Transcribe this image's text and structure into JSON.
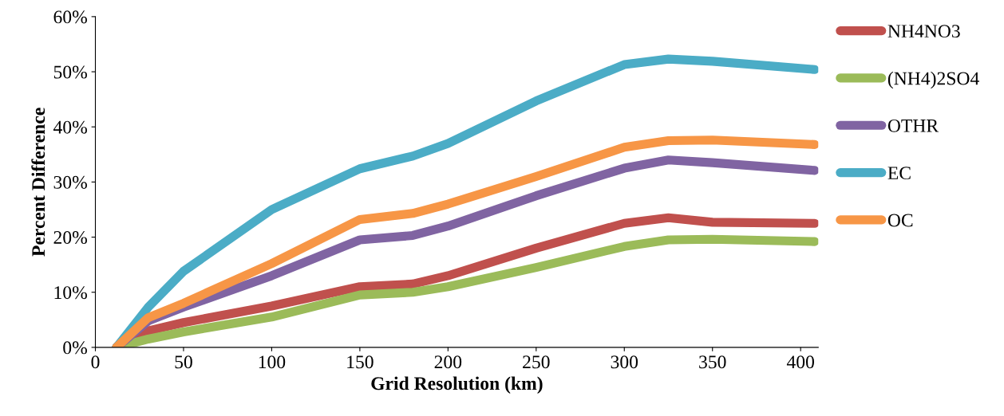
{
  "chart_data": {
    "type": "line",
    "xlabel": "Grid Resolution (km)",
    "ylabel": "Percent Difference",
    "x": [
      12,
      30,
      50,
      100,
      150,
      180,
      200,
      250,
      300,
      325,
      350,
      408
    ],
    "series": [
      {
        "name": "NH4NO3",
        "color": "#c0504d",
        "values": [
          0,
          3,
          4.5,
          7.5,
          11,
          11.5,
          13,
          18,
          22.5,
          23.5,
          22.7,
          22.5
        ]
      },
      {
        "name": "(NH4)2SO4",
        "color": "#9bbb59",
        "values": [
          0,
          1.5,
          2.8,
          5.5,
          9.5,
          10,
          11,
          14.5,
          18.3,
          19.5,
          19.6,
          19.2
        ]
      },
      {
        "name": "OTHR",
        "color": "#8064a2",
        "values": [
          0,
          4.8,
          7.3,
          13,
          19.5,
          20.3,
          22,
          27.5,
          32.5,
          34,
          33.5,
          32.1
        ]
      },
      {
        "name": "EC",
        "color": "#4bacc6",
        "values": [
          0,
          7.3,
          13.8,
          25,
          32.4,
          34.7,
          37,
          44.7,
          51.3,
          52.3,
          51.9,
          50.4
        ]
      },
      {
        "name": "OC",
        "color": "#f79646",
        "values": [
          0,
          5.4,
          8,
          15.2,
          23.2,
          24.3,
          26,
          31,
          36.3,
          37.5,
          37.6,
          36.8
        ]
      }
    ],
    "xlim": [
      0,
      410
    ],
    "xticks": [
      0,
      50,
      100,
      150,
      200,
      250,
      300,
      350,
      400
    ],
    "ylim": [
      0,
      60
    ],
    "yticks": [
      {
        "value": 0,
        "label": "0%"
      },
      {
        "value": 10,
        "label": "10%"
      },
      {
        "value": 20,
        "label": "20%"
      },
      {
        "value": 30,
        "label": "30%"
      },
      {
        "value": 40,
        "label": "40%"
      },
      {
        "value": 50,
        "label": "50%"
      },
      {
        "value": 60,
        "label": "60%"
      }
    ],
    "grid": false,
    "legend": "right",
    "marker": "none",
    "line_style": "solid"
  }
}
